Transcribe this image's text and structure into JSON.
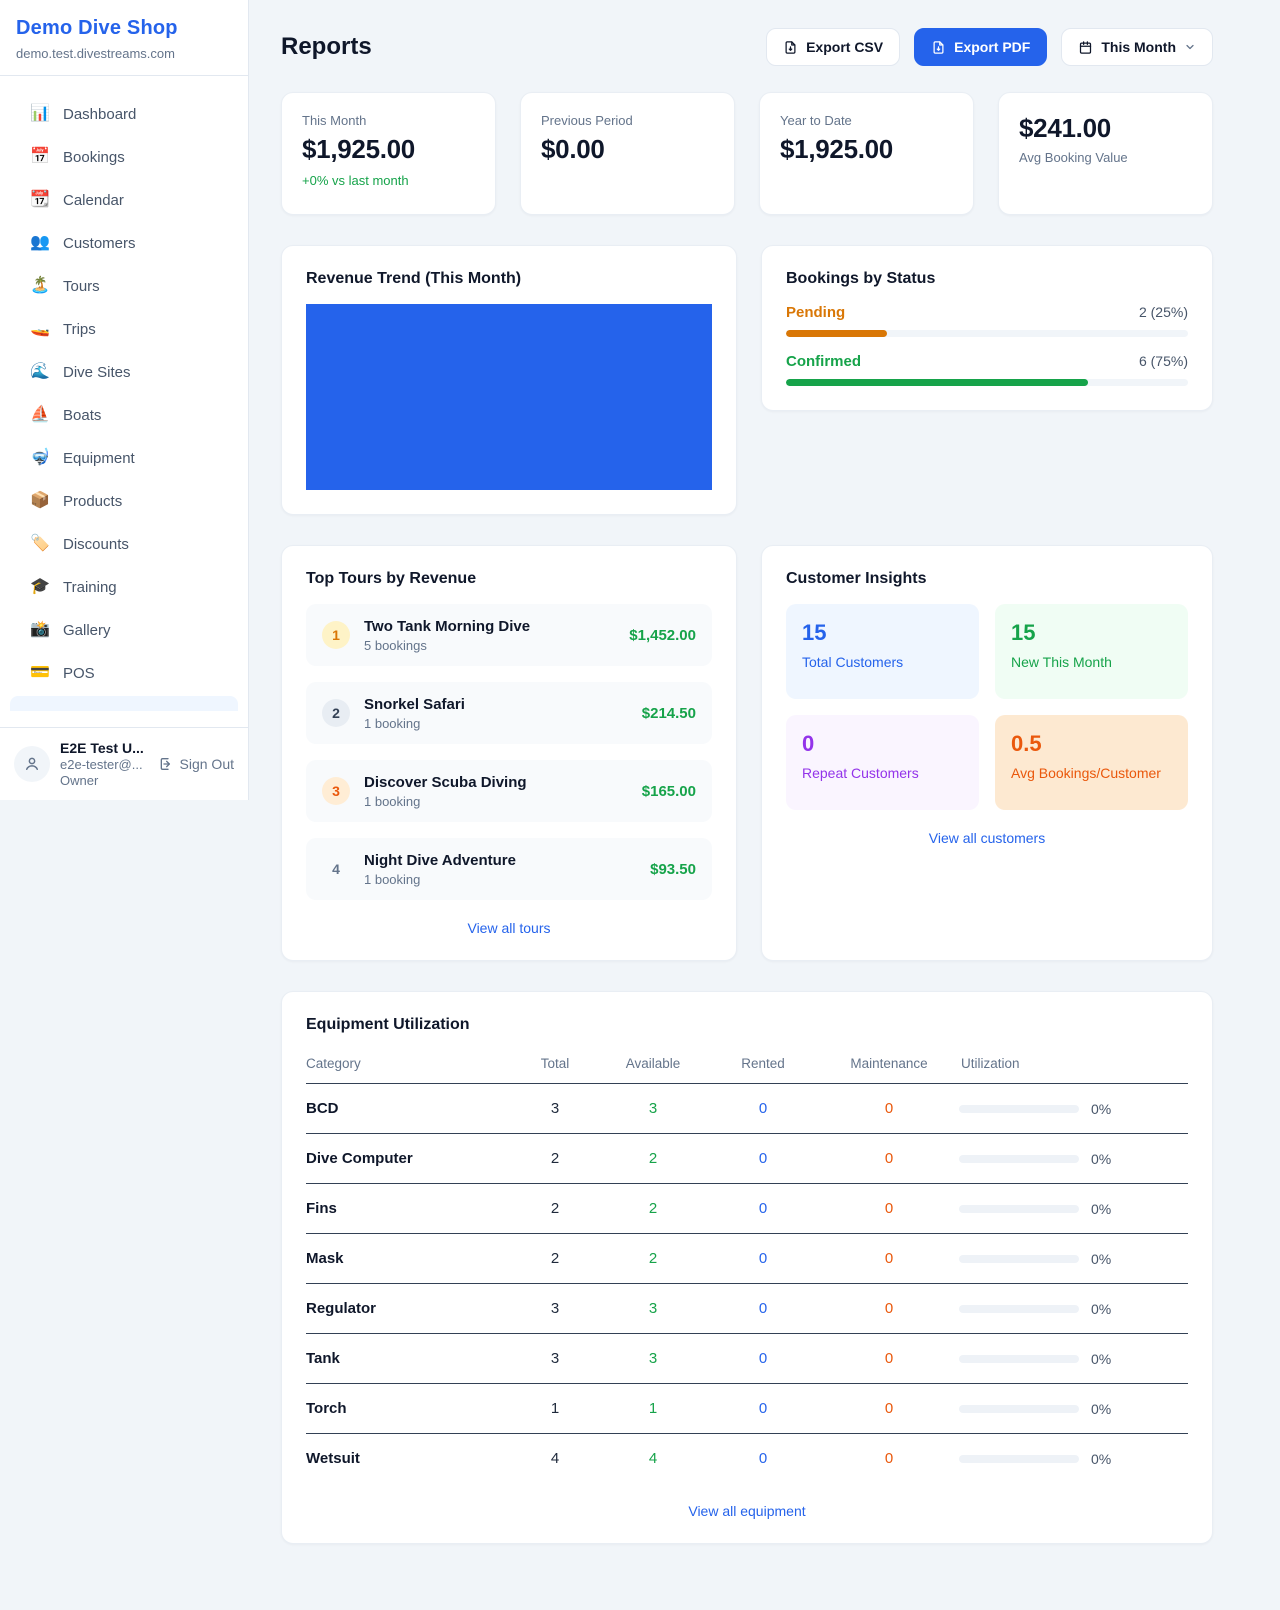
{
  "colors": {
    "accent_blue": "#2563eb",
    "green": "#16a34a",
    "amber": "#d97706",
    "orange": "#ea580c",
    "purple": "#9333ea"
  },
  "sidebar": {
    "shop_name": "Demo Dive Shop",
    "shop_domain": "demo.test.divestreams.com",
    "nav": [
      {
        "label": "Dashboard",
        "icon": "📊"
      },
      {
        "label": "Bookings",
        "icon": "📅"
      },
      {
        "label": "Calendar",
        "icon": "📆"
      },
      {
        "label": "Customers",
        "icon": "👥"
      },
      {
        "label": "Tours",
        "icon": "🏝️"
      },
      {
        "label": "Trips",
        "icon": "🚤"
      },
      {
        "label": "Dive Sites",
        "icon": "🌊"
      },
      {
        "label": "Boats",
        "icon": "⛵"
      },
      {
        "label": "Equipment",
        "icon": "🤿"
      },
      {
        "label": "Products",
        "icon": "📦"
      },
      {
        "label": "Discounts",
        "icon": "🏷️"
      },
      {
        "label": "Training",
        "icon": "🎓"
      },
      {
        "label": "Gallery",
        "icon": "📸"
      },
      {
        "label": "POS",
        "icon": "💳"
      }
    ],
    "user": {
      "name": "E2E Test U...",
      "email": "e2e-tester@...",
      "role": "Owner",
      "sign_out_label": "Sign Out"
    }
  },
  "header": {
    "title": "Reports",
    "export_csv_label": "Export CSV",
    "export_pdf_label": "Export PDF",
    "period_label": "This Month"
  },
  "stats": [
    {
      "label": "This Month",
      "value": "$1,925.00",
      "delta": "+0% vs last month"
    },
    {
      "label": "Previous Period",
      "value": "$0.00"
    },
    {
      "label": "Year to Date",
      "value": "$1,925.00"
    },
    {
      "label": "Avg Booking Value",
      "value": "$241.00"
    }
  ],
  "revenue_trend": {
    "title": "Revenue Trend (This Month)",
    "block_style": "background:#2563eb"
  },
  "bookings_by_status": {
    "title": "Bookings by Status",
    "items": [
      {
        "label": "Pending",
        "value_text": "2 (25%)",
        "count": 2,
        "percent": 25,
        "fill_style": "width:25%;background:#d97706"
      },
      {
        "label": "Confirmed",
        "value_text": "6 (75%)",
        "count": 6,
        "percent": 75,
        "fill_style": "width:75%;background:#16a34a"
      }
    ]
  },
  "top_tours": {
    "title": "Top Tours by Revenue",
    "items": [
      {
        "rank": "1",
        "name": "Two Tank Morning Dive",
        "bookings": "5 bookings",
        "revenue": "$1,452.00"
      },
      {
        "rank": "2",
        "name": "Snorkel Safari",
        "bookings": "1 booking",
        "revenue": "$214.50"
      },
      {
        "rank": "3",
        "name": "Discover Scuba Diving",
        "bookings": "1 booking",
        "revenue": "$165.00"
      },
      {
        "rank": "4",
        "name": "Night Dive Adventure",
        "bookings": "1 booking",
        "revenue": "$93.50"
      }
    ],
    "view_all_label": "View all tours"
  },
  "customer_insights": {
    "title": "Customer Insights",
    "tiles": [
      {
        "value": "15",
        "label": "Total Customers"
      },
      {
        "value": "15",
        "label": "New This Month"
      },
      {
        "value": "0",
        "label": "Repeat Customers"
      },
      {
        "value": "0.5",
        "label": "Avg Bookings/Customer"
      }
    ],
    "view_all_label": "View all customers"
  },
  "equipment": {
    "title": "Equipment Utilization",
    "columns": [
      "Category",
      "Total",
      "Available",
      "Rented",
      "Maintenance",
      "Utilization"
    ],
    "rows": [
      {
        "category": "BCD",
        "total": "3",
        "available": "3",
        "rented": "0",
        "maintenance": "0",
        "utilization": "0%"
      },
      {
        "category": "Dive Computer",
        "total": "2",
        "available": "2",
        "rented": "0",
        "maintenance": "0",
        "utilization": "0%"
      },
      {
        "category": "Fins",
        "total": "2",
        "available": "2",
        "rented": "0",
        "maintenance": "0",
        "utilization": "0%"
      },
      {
        "category": "Mask",
        "total": "2",
        "available": "2",
        "rented": "0",
        "maintenance": "0",
        "utilization": "0%"
      },
      {
        "category": "Regulator",
        "total": "3",
        "available": "3",
        "rented": "0",
        "maintenance": "0",
        "utilization": "0%"
      },
      {
        "category": "Tank",
        "total": "3",
        "available": "3",
        "rented": "0",
        "maintenance": "0",
        "utilization": "0%"
      },
      {
        "category": "Torch",
        "total": "1",
        "available": "1",
        "rented": "0",
        "maintenance": "0",
        "utilization": "0%"
      },
      {
        "category": "Wetsuit",
        "total": "4",
        "available": "4",
        "rented": "0",
        "maintenance": "0",
        "utilization": "0%"
      }
    ],
    "view_all_label": "View all equipment"
  }
}
